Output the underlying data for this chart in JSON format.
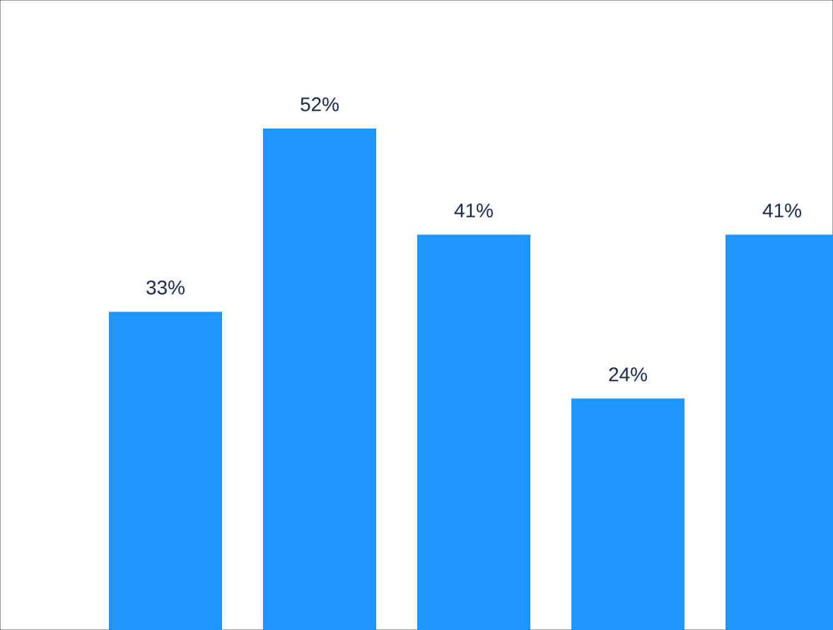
{
  "chart_data": {
    "type": "bar",
    "categories": [
      null,
      null,
      null,
      null,
      null
    ],
    "series": [
      {
        "color": "#1f95fe",
        "values": [
          33,
          52,
          41,
          24,
          41
        ],
        "value_labels": [
          "33%",
          "52%",
          "41%",
          "24%",
          "41%"
        ]
      }
    ]
  }
}
